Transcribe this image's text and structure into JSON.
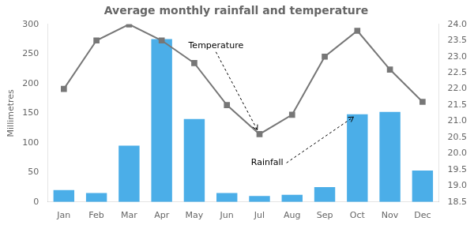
{
  "chart_data": {
    "type": "bar",
    "title": "Average monthly rainfall and temperature",
    "ylabel": "Millimetres",
    "categories": [
      "Jan",
      "Feb",
      "Mar",
      "Apr",
      "May",
      "Jun",
      "Jul",
      "Aug",
      "Sep",
      "Oct",
      "Nov",
      "Dec"
    ],
    "series": [
      {
        "type": "bar",
        "color": "#4baee8",
        "values": [
          20,
          15,
          95,
          275,
          140,
          15,
          10,
          12,
          25,
          148,
          152,
          53
        ]
      },
      {
        "type": "line",
        "axis": "y2",
        "color": "#777777",
        "marker": "square",
        "values": [
          22.0,
          23.5,
          24.0,
          23.5,
          22.8,
          21.5,
          20.6,
          21.2,
          23.0,
          23.8,
          22.6,
          21.6
        ]
      }
    ],
    "ylim": [
      0,
      300
    ],
    "yticks": [
      0,
      50,
      100,
      150,
      200,
      250,
      300
    ],
    "y2lim": [
      18.5,
      24.0
    ],
    "y2ticks": [
      18.5,
      {
        "value": 19,
        "label": "19.0"
      },
      19.5,
      {
        "value": 20,
        "label": "20.0"
      },
      20.5,
      {
        "value": 21,
        "label": "21.0"
      },
      21.5,
      {
        "value": 22,
        "label": "22.0"
      },
      22.5,
      {
        "value": 23,
        "label": "23.0"
      },
      23.5,
      {
        "value": 24,
        "label": "24.0"
      }
    ],
    "grid": false,
    "annotations": [
      {
        "text": "Temperature",
        "x": "Jul",
        "y": 20.6,
        "axis": "y2"
      },
      {
        "text": "Rainfall",
        "x": "Oct",
        "y": 148
      }
    ]
  }
}
